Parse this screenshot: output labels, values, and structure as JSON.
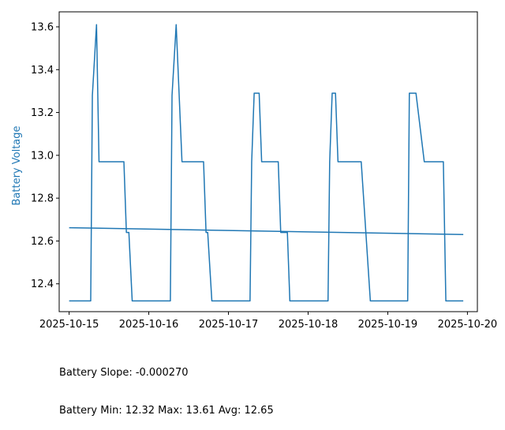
{
  "chart_data": {
    "type": "line",
    "title": "",
    "xlabel": "",
    "ylabel": "Battery Voltage",
    "ylabel_color": "#1f77b4",
    "line_color": "#1f77b4",
    "grid": false,
    "xlim": [
      "2025-10-14T21:00",
      "2025-10-20T03:00"
    ],
    "ylim": [
      12.27,
      13.67
    ],
    "x_ticks": [
      "2025-10-15",
      "2025-10-16",
      "2025-10-17",
      "2025-10-18",
      "2025-10-19",
      "2025-10-20"
    ],
    "y_ticks": [
      "12.4",
      "12.6",
      "12.8",
      "13.0",
      "13.2",
      "13.4",
      "13.6"
    ],
    "series": [
      {
        "x": [
          "2025-10-15T00:00",
          "2025-10-15T06:30",
          "2025-10-15T07:00",
          "2025-10-15T08:15",
          "2025-10-15T09:00",
          "2025-10-15T16:30",
          "2025-10-15T17:15",
          "2025-10-15T18:00",
          "2025-10-15T19:00",
          "2025-10-16T06:30",
          "2025-10-16T07:00",
          "2025-10-16T08:15",
          "2025-10-16T10:00",
          "2025-10-16T16:30",
          "2025-10-16T17:15",
          "2025-10-16T17:45",
          "2025-10-16T19:00",
          "2025-10-17T06:30",
          "2025-10-17T07:00",
          "2025-10-17T07:45",
          "2025-10-17T09:15",
          "2025-10-17T10:00",
          "2025-10-17T15:00",
          "2025-10-17T15:45",
          "2025-10-17T17:45",
          "2025-10-17T18:30",
          "2025-10-18T06:00",
          "2025-10-18T06:30",
          "2025-10-18T07:15",
          "2025-10-18T08:15",
          "2025-10-18T09:00",
          "2025-10-18T16:00",
          "2025-10-18T18:45",
          "2025-10-19T06:00",
          "2025-10-19T06:30",
          "2025-10-19T08:30",
          "2025-10-19T11:00",
          "2025-10-19T16:45",
          "2025-10-19T17:30",
          "2025-10-19T22:45"
        ],
        "values": [
          12.32,
          12.32,
          13.28,
          13.61,
          12.97,
          12.97,
          12.64,
          12.64,
          12.32,
          12.32,
          13.28,
          13.61,
          12.97,
          12.97,
          12.64,
          12.64,
          12.32,
          12.32,
          12.97,
          13.29,
          13.29,
          12.97,
          12.97,
          12.64,
          12.64,
          12.32,
          12.32,
          12.97,
          13.29,
          13.29,
          12.97,
          12.97,
          12.32,
          12.32,
          13.29,
          13.29,
          12.97,
          12.97,
          12.32,
          12.32
        ]
      },
      {
        "x": [
          "2025-10-15T00:00",
          "2025-10-19T22:45"
        ],
        "values": [
          12.662,
          12.63
        ]
      }
    ]
  },
  "stats": {
    "slope_line": "Battery Slope: -0.000270",
    "summary_line": "Battery Min: 12.32 Max: 13.61 Avg: 12.65"
  }
}
